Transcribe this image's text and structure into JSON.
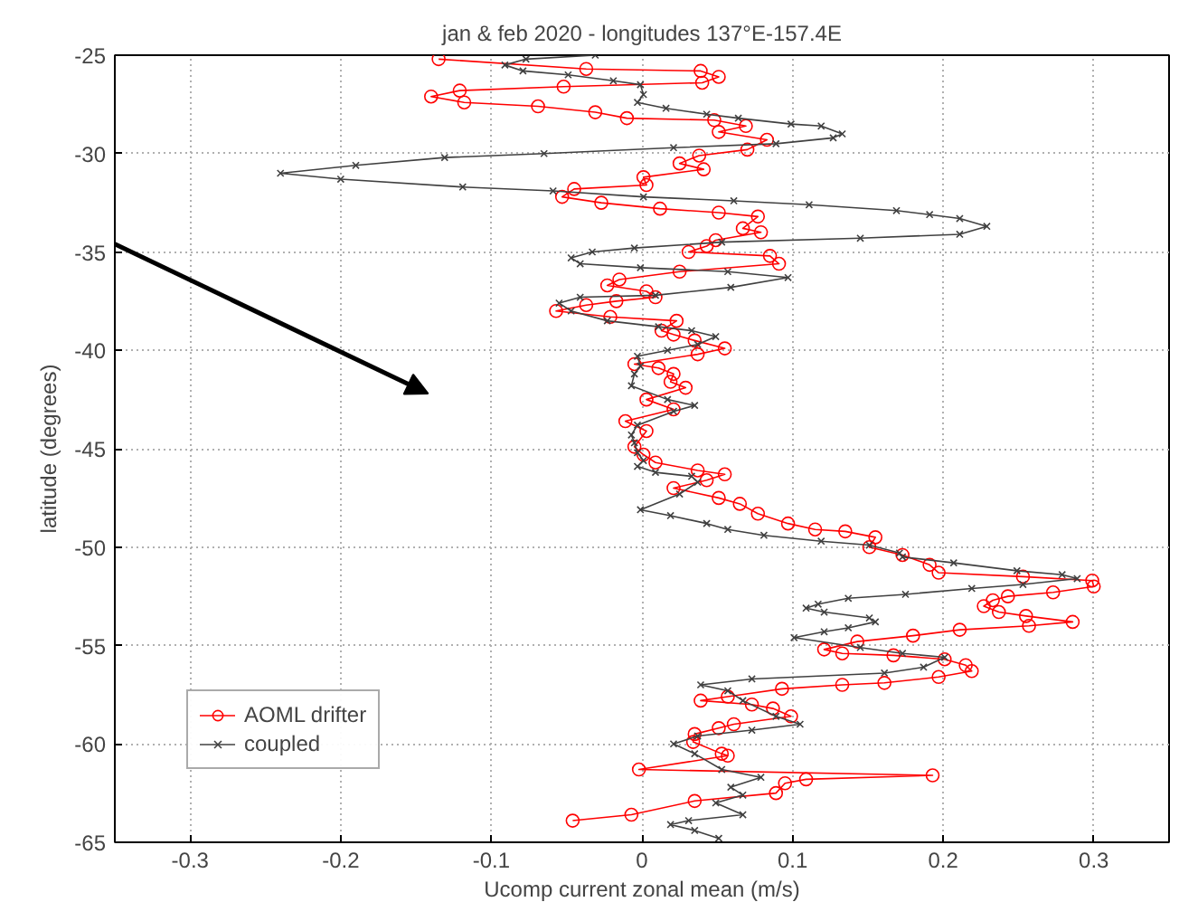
{
  "chart_data": {
    "type": "line",
    "title": "jan & feb 2020 - longitudes 137°E-157.4E",
    "xlabel": "Ucomp current zonal mean (m/s)",
    "ylabel": "latitude (degrees)",
    "xlim": [
      -0.35,
      0.35
    ],
    "ylim": [
      -65,
      -25
    ],
    "xticks": [
      -0.3,
      -0.2,
      -0.1,
      0,
      0.1,
      0.2,
      0.3
    ],
    "yticks": [
      -65,
      -60,
      -55,
      -50,
      -45,
      -40,
      -35,
      -30,
      -25
    ],
    "grid": true,
    "legend": "bottom left",
    "line_style": "solid",
    "series": [
      {
        "name": "AOML drifter",
        "color": "#ff0000",
        "marker": "circle",
        "x": [
          -0.135,
          -0.037,
          0.039,
          0.051,
          0.04,
          -0.052,
          -0.121,
          -0.14,
          -0.118,
          -0.069,
          -0.031,
          -0.01,
          0.048,
          0.069,
          0.051,
          0.083,
          0.07,
          0.038,
          0.025,
          0.041,
          0.001,
          0.003,
          -0.045,
          -0.053,
          -0.027,
          0.012,
          0.051,
          0.077,
          0.067,
          0.079,
          0.049,
          0.043,
          0.031,
          0.085,
          0.091,
          0.025,
          -0.015,
          -0.023,
          0.003,
          0.009,
          -0.017,
          -0.037,
          -0.057,
          -0.021,
          0.023,
          0.013,
          0.021,
          0.035,
          0.055,
          0.037,
          -0.005,
          0.011,
          0.021,
          0.019,
          0.029,
          0.003,
          0.021,
          -0.011,
          0.003,
          -0.005,
          0.001,
          0.009,
          0.037,
          0.055,
          0.043,
          0.021,
          0.051,
          0.065,
          0.077,
          0.097,
          0.115,
          0.135,
          0.155,
          0.151,
          0.173,
          0.191,
          0.197,
          0.253,
          0.299,
          0.3,
          0.273,
          0.243,
          0.233,
          0.227,
          0.237,
          0.255,
          0.286,
          0.257,
          0.211,
          0.18,
          0.143,
          0.121,
          0.133,
          0.167,
          0.201,
          0.215,
          0.219,
          0.197,
          0.161,
          0.133,
          0.093,
          0.057,
          0.039,
          0.073,
          0.087,
          0.099,
          0.061,
          0.051,
          0.035,
          0.034,
          0.053,
          0.057,
          -0.002,
          0.193,
          0.109,
          0.095,
          0.089,
          0.035,
          -0.007,
          -0.046
        ],
        "values": [
          -25.2,
          -25.7,
          -25.8,
          -26.1,
          -26.4,
          -26.6,
          -26.8,
          -27.1,
          -27.4,
          -27.6,
          -27.9,
          -28.2,
          -28.3,
          -28.6,
          -28.9,
          -29.3,
          -29.8,
          -30.1,
          -30.5,
          -30.8,
          -31.2,
          -31.6,
          -31.8,
          -32.2,
          -32.5,
          -32.8,
          -33.0,
          -33.2,
          -33.8,
          -34.0,
          -34.4,
          -34.7,
          -35.0,
          -35.2,
          -35.6,
          -36.0,
          -36.4,
          -36.7,
          -37.0,
          -37.3,
          -37.5,
          -37.7,
          -38.0,
          -38.3,
          -38.5,
          -39.0,
          -39.2,
          -39.5,
          -39.9,
          -40.2,
          -40.7,
          -40.9,
          -41.2,
          -41.6,
          -41.9,
          -42.5,
          -43.0,
          -43.6,
          -44.1,
          -44.9,
          -45.3,
          -45.7,
          -46.1,
          -46.3,
          -46.6,
          -47.0,
          -47.5,
          -47.8,
          -48.3,
          -48.8,
          -49.1,
          -49.2,
          -49.5,
          -50.0,
          -50.4,
          -50.9,
          -51.3,
          -51.5,
          -51.7,
          -52.0,
          -52.3,
          -52.5,
          -52.7,
          -53.0,
          -53.3,
          -53.5,
          -53.8,
          -54.0,
          -54.2,
          -54.5,
          -54.8,
          -55.2,
          -55.4,
          -55.5,
          -55.7,
          -56.0,
          -56.3,
          -56.6,
          -56.9,
          -57.0,
          -57.2,
          -57.6,
          -57.8,
          -58.0,
          -58.2,
          -58.6,
          -59.0,
          -59.2,
          -59.5,
          -59.9,
          -60.5,
          -60.6,
          -61.3,
          -61.6,
          -61.8,
          -62.0,
          -62.5,
          -62.9,
          -63.6,
          -63.9
        ]
      },
      {
        "name": "coupled",
        "color": "#404040",
        "marker": "cross",
        "x": [
          -0.031,
          -0.077,
          -0.091,
          -0.079,
          -0.049,
          -0.019,
          -0.001,
          0.001,
          -0.003,
          0.016,
          0.043,
          0.064,
          0.099,
          0.119,
          0.133,
          0.127,
          0.089,
          0.021,
          -0.065,
          -0.131,
          -0.19,
          -0.24,
          -0.2,
          -0.119,
          -0.059,
          0.001,
          0.061,
          0.111,
          0.169,
          0.191,
          0.211,
          0.229,
          0.211,
          0.145,
          0.053,
          -0.005,
          -0.033,
          -0.047,
          -0.041,
          -0.001,
          0.057,
          0.097,
          0.059,
          0.009,
          -0.041,
          -0.055,
          -0.047,
          -0.023,
          0.011,
          0.033,
          0.049,
          0.037,
          0.017,
          -0.003,
          -0.001,
          -0.005,
          -0.007,
          0.017,
          0.035,
          0.021,
          -0.003,
          -0.007,
          -0.005,
          -0.003,
          0.001,
          -0.003,
          0.009,
          0.033,
          0.037,
          0.025,
          -0.001,
          0.019,
          0.043,
          0.057,
          0.081,
          0.119,
          0.151,
          0.171,
          0.173,
          0.207,
          0.249,
          0.279,
          0.289,
          0.253,
          0.219,
          0.175,
          0.137,
          0.117,
          0.109,
          0.121,
          0.151,
          0.155,
          0.137,
          0.121,
          0.101,
          0.145,
          0.173,
          0.201,
          0.187,
          0.161,
          0.073,
          0.039,
          0.057,
          0.067,
          0.089,
          0.105,
          0.073,
          0.037,
          0.021,
          0.035,
          0.053,
          0.079,
          0.059,
          0.067,
          0.049,
          0.067,
          0.031,
          0.019,
          0.035,
          0.051
        ],
        "values": [
          -25.0,
          -25.2,
          -25.5,
          -25.8,
          -26.0,
          -26.3,
          -26.5,
          -27.0,
          -27.4,
          -27.7,
          -28.0,
          -28.2,
          -28.5,
          -28.6,
          -29.0,
          -29.2,
          -29.5,
          -29.7,
          -30.0,
          -30.2,
          -30.6,
          -31.0,
          -31.3,
          -31.7,
          -31.9,
          -32.2,
          -32.4,
          -32.6,
          -32.9,
          -33.1,
          -33.3,
          -33.7,
          -34.1,
          -34.3,
          -34.5,
          -34.8,
          -35.0,
          -35.3,
          -35.6,
          -35.8,
          -36.0,
          -36.3,
          -36.8,
          -37.2,
          -37.3,
          -37.6,
          -38.0,
          -38.5,
          -38.8,
          -39.0,
          -39.3,
          -39.7,
          -40.0,
          -40.3,
          -40.8,
          -41.2,
          -41.8,
          -42.5,
          -42.8,
          -43.1,
          -43.8,
          -44.3,
          -44.7,
          -45.2,
          -45.6,
          -45.9,
          -46.2,
          -46.4,
          -46.7,
          -47.3,
          -48.1,
          -48.4,
          -48.8,
          -49.1,
          -49.4,
          -49.7,
          -49.9,
          -50.3,
          -50.5,
          -50.8,
          -51.2,
          -51.4,
          -51.6,
          -51.9,
          -52.1,
          -52.4,
          -52.6,
          -52.9,
          -53.1,
          -53.3,
          -53.6,
          -53.8,
          -54.1,
          -54.3,
          -54.6,
          -55.1,
          -55.4,
          -55.6,
          -56.1,
          -56.4,
          -56.7,
          -57.0,
          -57.3,
          -57.8,
          -58.6,
          -59.0,
          -59.3,
          -59.6,
          -60.0,
          -60.5,
          -61.3,
          -61.7,
          -62.2,
          -62.6,
          -63.0,
          -63.6,
          -63.9,
          -64.1,
          -64.4,
          -64.8
        ]
      }
    ]
  }
}
